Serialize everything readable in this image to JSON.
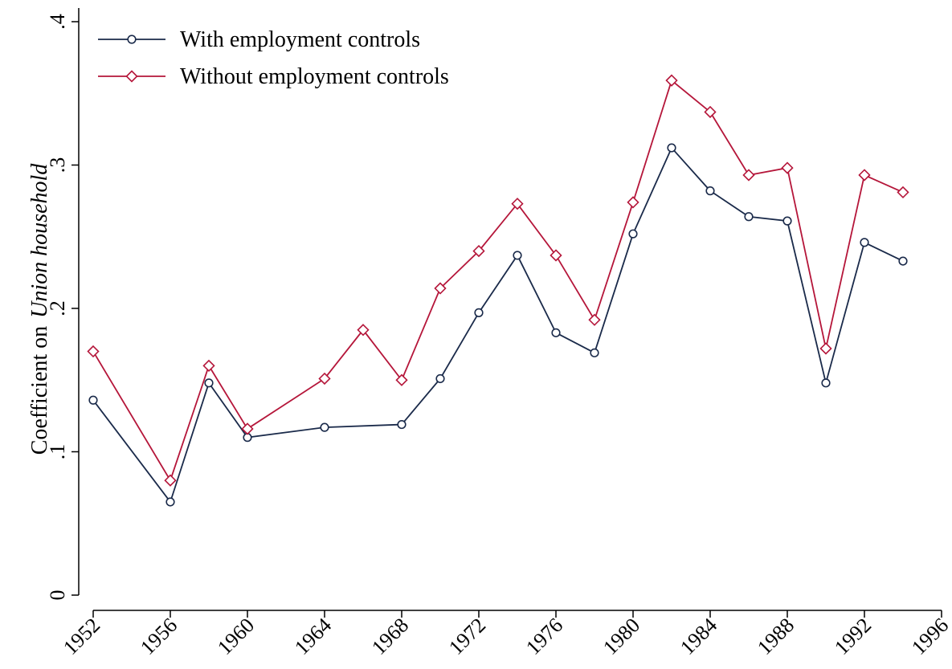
{
  "chart_data": {
    "type": "line",
    "title": "",
    "xlabel": "",
    "ylabel": {
      "prefix": "Coefficient on",
      "italic": "Union household"
    },
    "xlim": [
      1952,
      1996
    ],
    "ylim": [
      0,
      0.4
    ],
    "x_ticks": [
      1952,
      1956,
      1960,
      1964,
      1968,
      1972,
      1976,
      1980,
      1984,
      1988,
      1992,
      1996
    ],
    "y_ticks": [
      {
        "value": 0,
        "label": "0"
      },
      {
        "value": 0.1,
        "label": ".1"
      },
      {
        "value": 0.2,
        "label": ".2"
      },
      {
        "value": 0.3,
        "label": ".3"
      },
      {
        "value": 0.4,
        "label": ".4"
      }
    ],
    "grid": false,
    "legend_position": "top-left",
    "series": [
      {
        "name": "With employment controls",
        "color": "#1a2a4a",
        "marker": "circle",
        "x": [
          1952,
          1956,
          1958,
          1960,
          1964,
          1968,
          1970,
          1972,
          1974,
          1976,
          1978,
          1980,
          1982,
          1984,
          1986,
          1988,
          1990,
          1992,
          1994
        ],
        "values": [
          0.136,
          0.065,
          0.148,
          0.11,
          0.117,
          0.119,
          0.151,
          0.197,
          0.237,
          0.183,
          0.169,
          0.252,
          0.312,
          0.282,
          0.264,
          0.261,
          0.148,
          0.246,
          0.233
        ]
      },
      {
        "name": "Without employment controls",
        "color": "#b5163a",
        "marker": "diamond",
        "x": [
          1952,
          1956,
          1958,
          1960,
          1964,
          1966,
          1968,
          1970,
          1972,
          1974,
          1976,
          1978,
          1980,
          1982,
          1984,
          1986,
          1988,
          1990,
          1992,
          1994
        ],
        "values": [
          0.17,
          0.08,
          0.16,
          0.116,
          0.151,
          0.185,
          0.15,
          0.214,
          0.24,
          0.273,
          0.237,
          0.192,
          0.274,
          0.359,
          0.337,
          0.293,
          0.298,
          0.172,
          0.293,
          0.281
        ]
      }
    ]
  }
}
